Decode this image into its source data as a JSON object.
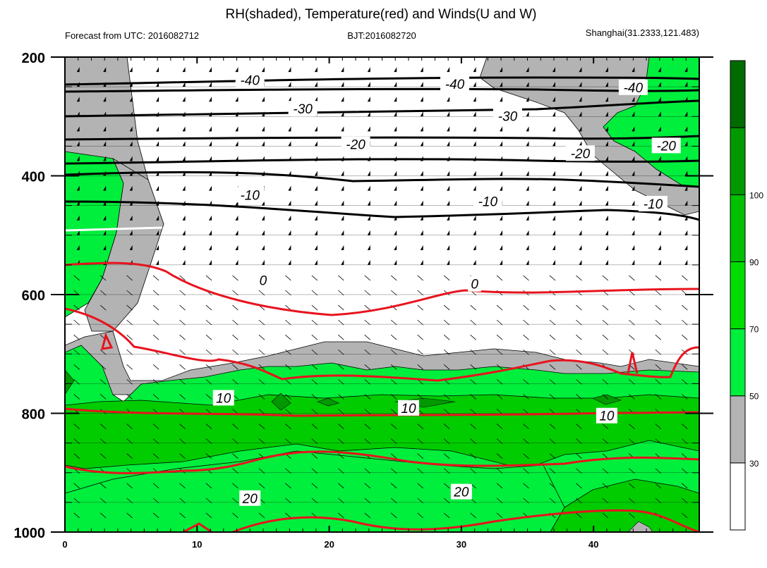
{
  "chart_data": {
    "type": "contour",
    "title": "RH(shaded), Temperature(red) and Winds(U and W)",
    "subtitle_left": "Forecast from UTC: 2016082712",
    "subtitle_center": "BJT:2016082720",
    "subtitle_right": "Shanghai(31.2333,121.483)",
    "x_range": [
      0,
      48
    ],
    "x_ticks": [
      0,
      10,
      20,
      30,
      40
    ],
    "y_range": [
      200,
      1000
    ],
    "y_ticks": [
      200,
      400,
      600,
      800,
      1000
    ],
    "y_reversed": true,
    "colorbar": {
      "labels": [
        "30",
        "50",
        "70",
        "90",
        "100"
      ],
      "colors": [
        "#ffffff",
        "#b3b3b3",
        "#00ee3c",
        "#00dd00",
        "#00c000",
        "#009a00",
        "#006b00"
      ]
    },
    "contour_labels": [
      {
        "text": "-40",
        "x": 14,
        "y": 240
      },
      {
        "text": "-40",
        "x": 29.5,
        "y": 246
      },
      {
        "text": "-40",
        "x": 43,
        "y": 252
      },
      {
        "text": "-30",
        "x": 18,
        "y": 288
      },
      {
        "text": "-30",
        "x": 33.5,
        "y": 300
      },
      {
        "text": "-20",
        "x": 22,
        "y": 348
      },
      {
        "text": "-20",
        "x": 39,
        "y": 363
      },
      {
        "text": "-20",
        "x": 45.5,
        "y": 350
      },
      {
        "text": "-10",
        "x": 14,
        "y": 433
      },
      {
        "text": "-10",
        "x": 32,
        "y": 444
      },
      {
        "text": "-10",
        "x": 44.5,
        "y": 448
      },
      {
        "text": "0",
        "x": 15,
        "y": 577
      },
      {
        "text": "0",
        "x": 31,
        "y": 583
      },
      {
        "text": "10",
        "x": 12,
        "y": 775
      },
      {
        "text": "10",
        "x": 26,
        "y": 792
      },
      {
        "text": "10",
        "x": 41,
        "y": 805
      },
      {
        "text": "20",
        "x": 14,
        "y": 944
      },
      {
        "text": "20",
        "x": 30,
        "y": 933
      }
    ]
  }
}
